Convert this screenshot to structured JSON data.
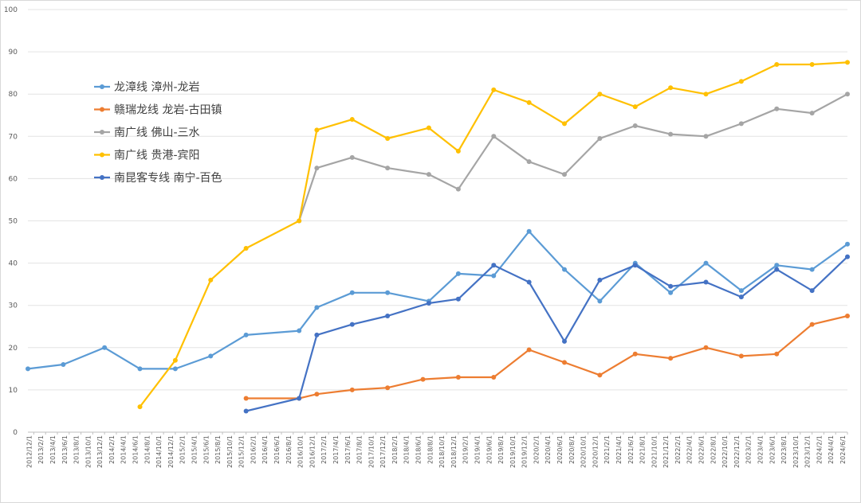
{
  "chart_data": {
    "type": "line",
    "title": "",
    "xlabel": "",
    "ylabel": "",
    "ylim": [
      0,
      100
    ],
    "y_ticks": [
      0,
      10,
      20,
      30,
      40,
      50,
      60,
      70,
      80,
      90,
      100
    ],
    "grid": "horizontal",
    "legend_position": "upper-left",
    "x_labels": [
      "2012/12/1",
      "2013/2/1",
      "2013/4/1",
      "2013/6/1",
      "2013/8/1",
      "2013/10/1",
      "2013/12/1",
      "2014/2/1",
      "2014/4/1",
      "2014/6/1",
      "2014/8/1",
      "2014/10/1",
      "2014/12/1",
      "2015/2/1",
      "2015/4/1",
      "2015/6/1",
      "2015/8/1",
      "2015/10/1",
      "2015/12/1",
      "2016/2/1",
      "2016/4/1",
      "2016/6/1",
      "2016/8/1",
      "2016/10/1",
      "2016/12/1",
      "2017/2/1",
      "2017/4/1",
      "2017/6/1",
      "2017/8/1",
      "2017/10/1",
      "2017/12/1",
      "2018/2/1",
      "2018/4/1",
      "2018/6/1",
      "2018/8/1",
      "2018/10/1",
      "2018/12/1",
      "2019/2/1",
      "2019/4/1",
      "2019/6/1",
      "2019/8/1",
      "2019/10/1",
      "2019/12/1",
      "2020/2/1",
      "2020/4/1",
      "2020/6/1",
      "2020/8/1",
      "2020/10/1",
      "2020/12/1",
      "2021/2/1",
      "2021/4/1",
      "2021/6/1",
      "2021/8/1",
      "2021/10/1",
      "2021/12/1",
      "2022/2/1",
      "2022/4/1",
      "2022/6/1",
      "2022/8/1",
      "2022/10/1",
      "2022/12/1",
      "2023/2/1",
      "2023/4/1",
      "2023/6/1",
      "2023/8/1",
      "2023/10/1",
      "2023/12/1",
      "2024/2/1",
      "2024/4/1",
      "2024/6/1"
    ],
    "series": [
      {
        "name": "龙漳线 漳州-龙岩",
        "color": "#5B9BD5",
        "points": [
          [
            "2012/12/1",
            15
          ],
          [
            "2013/6/1",
            16
          ],
          [
            "2014/1/1",
            20
          ],
          [
            "2014/7/1",
            15
          ],
          [
            "2015/1/1",
            15
          ],
          [
            "2015/7/1",
            18
          ],
          [
            "2016/1/1",
            23
          ],
          [
            "2016/10/1",
            24
          ],
          [
            "2017/1/1",
            29.5
          ],
          [
            "2017/7/1",
            33
          ],
          [
            "2018/1/1",
            33
          ],
          [
            "2018/8/1",
            31
          ],
          [
            "2019/1/1",
            37.5
          ],
          [
            "2019/7/1",
            37
          ],
          [
            "2020/1/1",
            47.5
          ],
          [
            "2020/7/1",
            38.5
          ],
          [
            "2021/1/1",
            31
          ],
          [
            "2021/7/1",
            40
          ],
          [
            "2022/1/1",
            33
          ],
          [
            "2022/7/1",
            40
          ],
          [
            "2023/1/1",
            33.5
          ],
          [
            "2023/7/1",
            39.5
          ],
          [
            "2024/1/1",
            38.5
          ],
          [
            "2024/7/1",
            44.5
          ]
        ]
      },
      {
        "name": "赣瑞龙线 龙岩-古田镇",
        "color": "#ED7D31",
        "points": [
          [
            "2016/1/1",
            8
          ],
          [
            "2016/10/1",
            8
          ],
          [
            "2017/1/1",
            9
          ],
          [
            "2017/7/1",
            10
          ],
          [
            "2018/1/1",
            10.5
          ],
          [
            "2018/7/1",
            12.5
          ],
          [
            "2019/1/1",
            13
          ],
          [
            "2019/7/1",
            13
          ],
          [
            "2020/1/1",
            19.5
          ],
          [
            "2020/7/1",
            16.5
          ],
          [
            "2021/1/1",
            13.5
          ],
          [
            "2021/7/1",
            18.5
          ],
          [
            "2022/1/1",
            17.5
          ],
          [
            "2022/7/1",
            20
          ],
          [
            "2023/1/1",
            18
          ],
          [
            "2023/7/1",
            18.5
          ],
          [
            "2024/1/1",
            25.5
          ],
          [
            "2024/7/1",
            27.5
          ]
        ]
      },
      {
        "name": "南广线 佛山-三水",
        "color": "#A5A5A5",
        "points": [
          [
            "2016/10/1",
            50
          ],
          [
            "2017/1/1",
            62.5
          ],
          [
            "2017/7/1",
            65
          ],
          [
            "2018/1/1",
            62.5
          ],
          [
            "2018/8/1",
            61
          ],
          [
            "2019/1/1",
            57.5
          ],
          [
            "2019/7/1",
            70
          ],
          [
            "2020/1/1",
            64
          ],
          [
            "2020/7/1",
            61
          ],
          [
            "2021/1/1",
            69.5
          ],
          [
            "2021/7/1",
            72.5
          ],
          [
            "2022/1/1",
            70.5
          ],
          [
            "2022/7/1",
            70
          ],
          [
            "2023/1/1",
            73
          ],
          [
            "2023/7/1",
            76.5
          ],
          [
            "2024/1/1",
            75.5
          ],
          [
            "2024/7/1",
            80
          ]
        ]
      },
      {
        "name": "南广线 贵港-宾阳",
        "color": "#FFC000",
        "points": [
          [
            "2014/7/1",
            6
          ],
          [
            "2015/1/1",
            17
          ],
          [
            "2015/7/1",
            36
          ],
          [
            "2016/1/1",
            43.5
          ],
          [
            "2016/10/1",
            50
          ],
          [
            "2017/1/1",
            71.5
          ],
          [
            "2017/7/1",
            74
          ],
          [
            "2018/1/1",
            69.5
          ],
          [
            "2018/8/1",
            72
          ],
          [
            "2019/1/1",
            66.5
          ],
          [
            "2019/7/1",
            81
          ],
          [
            "2020/1/1",
            78
          ],
          [
            "2020/7/1",
            73
          ],
          [
            "2021/1/1",
            80
          ],
          [
            "2021/7/1",
            77
          ],
          [
            "2022/1/1",
            81.5
          ],
          [
            "2022/7/1",
            80
          ],
          [
            "2023/1/1",
            83
          ],
          [
            "2023/7/1",
            87
          ],
          [
            "2024/1/1",
            87
          ],
          [
            "2024/7/1",
            87.5
          ]
        ]
      },
      {
        "name": "南昆客专线 南宁-百色",
        "color": "#4472C4",
        "points": [
          [
            "2016/1/1",
            5
          ],
          [
            "2016/10/1",
            8
          ],
          [
            "2017/1/1",
            23
          ],
          [
            "2017/7/1",
            25.5
          ],
          [
            "2018/1/1",
            27.5
          ],
          [
            "2018/8/1",
            30.5
          ],
          [
            "2019/1/1",
            31.5
          ],
          [
            "2019/7/1",
            39.5
          ],
          [
            "2020/1/1",
            35.5
          ],
          [
            "2020/7/1",
            21.5
          ],
          [
            "2021/1/1",
            36
          ],
          [
            "2021/7/1",
            39.5
          ],
          [
            "2022/1/1",
            34.5
          ],
          [
            "2022/7/1",
            35.5
          ],
          [
            "2023/1/1",
            32
          ],
          [
            "2023/7/1",
            38.5
          ],
          [
            "2024/1/1",
            33.5
          ],
          [
            "2024/7/1",
            41.5
          ]
        ]
      }
    ]
  }
}
